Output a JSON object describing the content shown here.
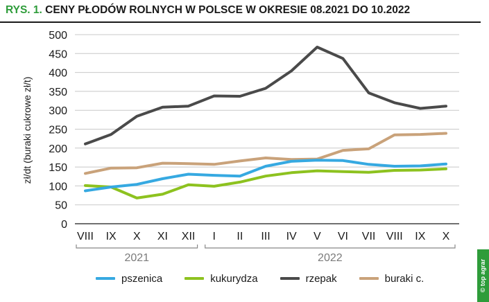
{
  "title": {
    "prefix": "RYS. 1.",
    "text": "CENY PŁODÓW ROLNYCH W POLSCE W OKRESIE 08.2021 DO 10.2022"
  },
  "logo_text": "© top agrar",
  "chart_data": {
    "type": "line",
    "ylabel": "zł/dt (buraki cukrowe zł/t)",
    "xlabel": "",
    "ylim": [
      0,
      500
    ],
    "yticks": [
      0,
      50,
      100,
      150,
      200,
      250,
      300,
      350,
      400,
      450,
      500
    ],
    "categories": [
      "VIII",
      "IX",
      "X",
      "XI",
      "XII",
      "I",
      "II",
      "III",
      "IV",
      "V",
      "VI",
      "VII",
      "VIII",
      "IX",
      "X"
    ],
    "year_groups": [
      {
        "label": "2021",
        "start": 0,
        "end": 4
      },
      {
        "label": "2022",
        "start": 5,
        "end": 14
      }
    ],
    "grid": "horizontal",
    "legend_position": "bottom",
    "series": [
      {
        "name": "pszenica",
        "color": "#36a9e1",
        "values": [
          87,
          97,
          104,
          119,
          131,
          128,
          126,
          152,
          165,
          168,
          167,
          157,
          152,
          153,
          158
        ]
      },
      {
        "name": "kukurydza",
        "color": "#8dc21f",
        "values": [
          101,
          97,
          68,
          78,
          103,
          99,
          110,
          126,
          135,
          140,
          138,
          136,
          141,
          142,
          145
        ]
      },
      {
        "name": "rzepak",
        "color": "#4a4a4a",
        "values": [
          211,
          236,
          284,
          308,
          311,
          338,
          337,
          358,
          404,
          467,
          437,
          346,
          320,
          305,
          311
        ]
      },
      {
        "name": "buraki c.",
        "color": "#c9a27a",
        "values": [
          133,
          147,
          148,
          160,
          159,
          157,
          166,
          174,
          170,
          171,
          194,
          198,
          235,
          236,
          239
        ]
      }
    ]
  }
}
